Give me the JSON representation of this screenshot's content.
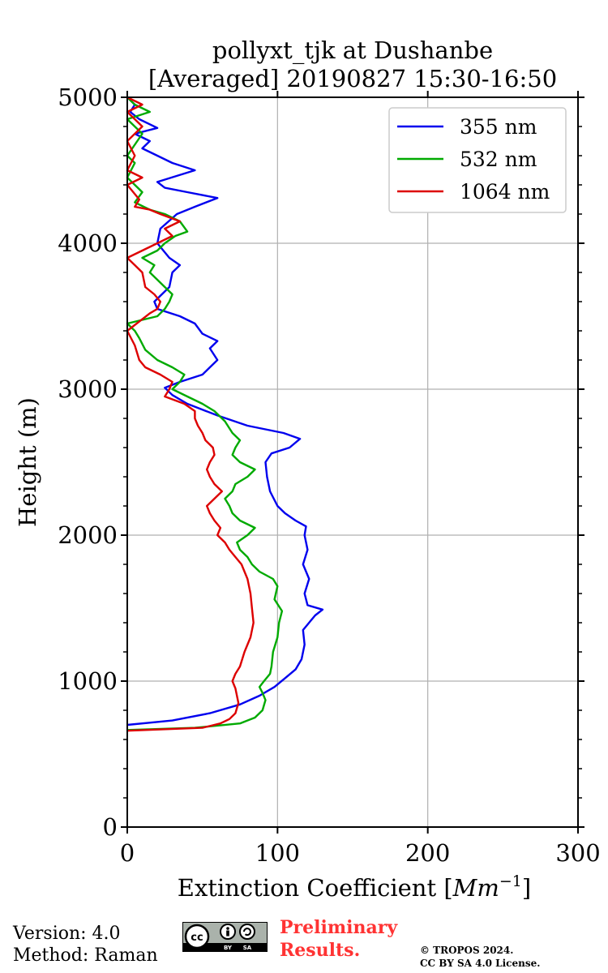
{
  "chart_data": {
    "type": "line",
    "title_line1": "pollyxt_tjk at Dushanbe",
    "title_line2": "[Averaged] 20190827 15:30-16:50",
    "xlabel_prefix": "Extinction Coefficient [",
    "xlabel_unit": "Mm",
    "xlabel_exp": "−1",
    "xlabel_suffix": "]",
    "ylabel": "Height (m)",
    "xlim": [
      0,
      300
    ],
    "ylim": [
      0,
      5000
    ],
    "xticks": [
      0,
      100,
      200,
      300
    ],
    "yticks": [
      0,
      1000,
      2000,
      3000,
      4000,
      5000
    ],
    "grid": true,
    "legend_position": "top-right",
    "series": [
      {
        "name": "355 nm",
        "color": "#0000ee",
        "points": [
          [
            0,
            700
          ],
          [
            30,
            730
          ],
          [
            55,
            780
          ],
          [
            75,
            840
          ],
          [
            88,
            900
          ],
          [
            98,
            960
          ],
          [
            105,
            1020
          ],
          [
            112,
            1080
          ],
          [
            116,
            1150
          ],
          [
            118,
            1250
          ],
          [
            117,
            1350
          ],
          [
            125,
            1450
          ],
          [
            130,
            1490
          ],
          [
            120,
            1520
          ],
          [
            118,
            1600
          ],
          [
            121,
            1700
          ],
          [
            117,
            1800
          ],
          [
            120,
            1900
          ],
          [
            118,
            2000
          ],
          [
            119,
            2060
          ],
          [
            112,
            2100
          ],
          [
            105,
            2150
          ],
          [
            100,
            2200
          ],
          [
            95,
            2300
          ],
          [
            93,
            2400
          ],
          [
            92,
            2500
          ],
          [
            96,
            2560
          ],
          [
            108,
            2600
          ],
          [
            115,
            2660
          ],
          [
            104,
            2700
          ],
          [
            80,
            2750
          ],
          [
            60,
            2820
          ],
          [
            40,
            2900
          ],
          [
            30,
            2960
          ],
          [
            25,
            3010
          ],
          [
            35,
            3050
          ],
          [
            50,
            3100
          ],
          [
            55,
            3150
          ],
          [
            60,
            3200
          ],
          [
            55,
            3280
          ],
          [
            60,
            3330
          ],
          [
            50,
            3380
          ],
          [
            45,
            3450
          ],
          [
            35,
            3500
          ],
          [
            20,
            3550
          ],
          [
            18,
            3600
          ],
          [
            28,
            3700
          ],
          [
            30,
            3800
          ],
          [
            35,
            3850
          ],
          [
            28,
            3900
          ],
          [
            20,
            4000
          ],
          [
            22,
            4100
          ],
          [
            33,
            4200
          ],
          [
            45,
            4250
          ],
          [
            60,
            4310
          ],
          [
            40,
            4350
          ],
          [
            25,
            4380
          ],
          [
            20,
            4420
          ],
          [
            45,
            4500
          ],
          [
            30,
            4550
          ],
          [
            20,
            4600
          ],
          [
            10,
            4650
          ],
          [
            15,
            4700
          ],
          [
            5,
            4750
          ],
          [
            20,
            4790
          ],
          [
            8,
            4850
          ],
          [
            2,
            4900
          ],
          [
            5,
            4950
          ],
          [
            0,
            5000
          ]
        ]
      },
      {
        "name": "532 nm",
        "color": "#00aa00",
        "points": [
          [
            0,
            665
          ],
          [
            45,
            680
          ],
          [
            75,
            710
          ],
          [
            85,
            750
          ],
          [
            90,
            800
          ],
          [
            92,
            870
          ],
          [
            90,
            920
          ],
          [
            88,
            960
          ],
          [
            91,
            1000
          ],
          [
            95,
            1050
          ],
          [
            96,
            1100
          ],
          [
            97,
            1200
          ],
          [
            100,
            1300
          ],
          [
            101,
            1400
          ],
          [
            103,
            1480
          ],
          [
            98,
            1560
          ],
          [
            100,
            1650
          ],
          [
            97,
            1700
          ],
          [
            88,
            1750
          ],
          [
            83,
            1800
          ],
          [
            80,
            1850
          ],
          [
            75,
            1900
          ],
          [
            73,
            1950
          ],
          [
            80,
            2000
          ],
          [
            85,
            2050
          ],
          [
            75,
            2100
          ],
          [
            70,
            2150
          ],
          [
            68,
            2200
          ],
          [
            65,
            2250
          ],
          [
            70,
            2300
          ],
          [
            72,
            2350
          ],
          [
            80,
            2400
          ],
          [
            85,
            2450
          ],
          [
            75,
            2500
          ],
          [
            70,
            2550
          ],
          [
            72,
            2600
          ],
          [
            75,
            2650
          ],
          [
            70,
            2700
          ],
          [
            65,
            2780
          ],
          [
            58,
            2850
          ],
          [
            50,
            2900
          ],
          [
            40,
            2950
          ],
          [
            30,
            3000
          ],
          [
            35,
            3050
          ],
          [
            38,
            3100
          ],
          [
            30,
            3150
          ],
          [
            20,
            3200
          ],
          [
            12,
            3270
          ],
          [
            8,
            3350
          ],
          [
            5,
            3400
          ],
          [
            0,
            3450
          ],
          [
            20,
            3500
          ],
          [
            25,
            3550
          ],
          [
            28,
            3600
          ],
          [
            30,
            3650
          ],
          [
            25,
            3700
          ],
          [
            20,
            3750
          ],
          [
            15,
            3800
          ],
          [
            18,
            3850
          ],
          [
            10,
            3900
          ],
          [
            20,
            3950
          ],
          [
            25,
            4000
          ],
          [
            32,
            4050
          ],
          [
            40,
            4080
          ],
          [
            35,
            4150
          ],
          [
            25,
            4200
          ],
          [
            15,
            4230
          ],
          [
            5,
            4280
          ],
          [
            10,
            4350
          ],
          [
            5,
            4400
          ],
          [
            0,
            4450
          ],
          [
            5,
            4550
          ],
          [
            0,
            4600
          ],
          [
            10,
            4750
          ],
          [
            0,
            4850
          ],
          [
            15,
            4900
          ],
          [
            5,
            4950
          ],
          [
            0,
            5000
          ]
        ]
      },
      {
        "name": "1064 nm",
        "color": "#dd0000",
        "points": [
          [
            0,
            660
          ],
          [
            50,
            680
          ],
          [
            62,
            710
          ],
          [
            68,
            740
          ],
          [
            72,
            780
          ],
          [
            74,
            850
          ],
          [
            72,
            950
          ],
          [
            70,
            1000
          ],
          [
            72,
            1050
          ],
          [
            75,
            1100
          ],
          [
            78,
            1200
          ],
          [
            82,
            1300
          ],
          [
            84,
            1400
          ],
          [
            83,
            1500
          ],
          [
            82,
            1600
          ],
          [
            80,
            1700
          ],
          [
            76,
            1800
          ],
          [
            72,
            1850
          ],
          [
            68,
            1900
          ],
          [
            65,
            1950
          ],
          [
            60,
            2000
          ],
          [
            62,
            2050
          ],
          [
            58,
            2100
          ],
          [
            55,
            2150
          ],
          [
            53,
            2200
          ],
          [
            58,
            2250
          ],
          [
            63,
            2300
          ],
          [
            58,
            2350
          ],
          [
            55,
            2400
          ],
          [
            53,
            2450
          ],
          [
            55,
            2500
          ],
          [
            58,
            2550
          ],
          [
            57,
            2600
          ],
          [
            52,
            2650
          ],
          [
            50,
            2700
          ],
          [
            47,
            2750
          ],
          [
            45,
            2800
          ],
          [
            45,
            2850
          ],
          [
            38,
            2900
          ],
          [
            25,
            2950
          ],
          [
            28,
            3000
          ],
          [
            30,
            3050
          ],
          [
            22,
            3100
          ],
          [
            12,
            3150
          ],
          [
            8,
            3200
          ],
          [
            5,
            3300
          ],
          [
            0,
            3400
          ],
          [
            15,
            3520
          ],
          [
            20,
            3550
          ],
          [
            22,
            3600
          ],
          [
            18,
            3650
          ],
          [
            12,
            3700
          ],
          [
            10,
            3800
          ],
          [
            5,
            3850
          ],
          [
            0,
            3900
          ],
          [
            20,
            4000
          ],
          [
            30,
            4050
          ],
          [
            25,
            4100
          ],
          [
            35,
            4150
          ],
          [
            22,
            4200
          ],
          [
            15,
            4230
          ],
          [
            5,
            4250
          ],
          [
            8,
            4300
          ],
          [
            0,
            4400
          ],
          [
            10,
            4450
          ],
          [
            0,
            4500
          ],
          [
            5,
            4600
          ],
          [
            0,
            4700
          ],
          [
            10,
            4800
          ],
          [
            0,
            4900
          ],
          [
            10,
            4950
          ],
          [
            0,
            5000
          ]
        ]
      }
    ]
  },
  "footer": {
    "version": "Version: 4.0",
    "method": "Method: Raman",
    "prelim_line1": "Preliminary",
    "prelim_line2": "Results.",
    "copyright_line1": "© TROPOS 2024.",
    "copyright_line2": "CC BY SA 4.0 License.",
    "cc_label": "cc",
    "cc_by": "BY",
    "cc_sa": "SA"
  }
}
